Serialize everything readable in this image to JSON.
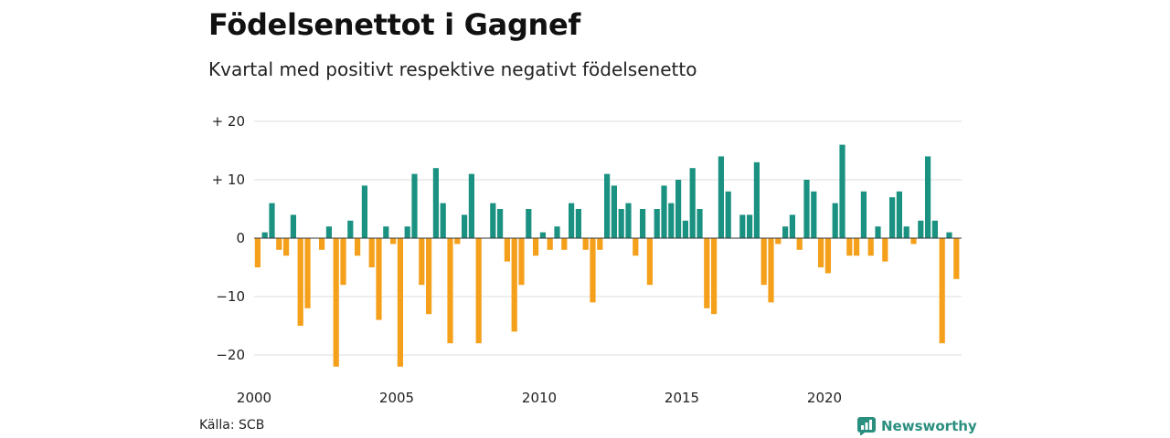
{
  "title": "Födelsenettot i Gagnef",
  "subtitle": "Kvartal med positivt respektive negativt födelsenetto",
  "source": "Källa: SCB",
  "brand": "Newsworthy",
  "colors": {
    "positive": "#1b9281",
    "negative": "#f5a01a",
    "grid": "#dddddd",
    "brand": "#2a8f7f"
  },
  "chart_data": {
    "type": "bar",
    "title": "Födelsenettot i Gagnef",
    "subtitle": "Kvartal med positivt respektive negativt födelsenetto",
    "x_start": "2000 Q1",
    "ylim": [
      -22,
      20
    ],
    "y_ticks": [
      {
        "value": 20,
        "label": "+ 20"
      },
      {
        "value": 10,
        "label": "+ 10"
      },
      {
        "value": 0,
        "label": "0"
      },
      {
        "value": -10,
        "label": "−10"
      },
      {
        "value": -20,
        "label": "−20"
      }
    ],
    "x_ticks": [
      "2000",
      "2005",
      "2010",
      "2015",
      "2020"
    ],
    "grid": true,
    "values": [
      -5,
      1,
      6,
      -2,
      -3,
      4,
      -15,
      -12,
      0,
      -2,
      2,
      -22,
      -8,
      3,
      -3,
      9,
      -5,
      -14,
      2,
      -1,
      -22,
      2,
      11,
      -8,
      -13,
      12,
      6,
      -18,
      -1,
      4,
      11,
      -18,
      0,
      6,
      5,
      -4,
      -16,
      -8,
      5,
      -3,
      1,
      -2,
      2,
      -2,
      6,
      5,
      -2,
      -11,
      -2,
      11,
      9,
      5,
      6,
      -3,
      5,
      -8,
      5,
      9,
      6,
      10,
      3,
      12,
      5,
      -12,
      -13,
      14,
      8,
      0,
      4,
      4,
      13,
      -8,
      -11,
      -1,
      2,
      4,
      -2,
      10,
      8,
      -5,
      -6,
      6,
      16,
      -3,
      -3,
      8,
      -3,
      2,
      -4,
      7,
      8,
      2,
      -1,
      3,
      14,
      3,
      -18,
      1,
      -7
    ]
  }
}
